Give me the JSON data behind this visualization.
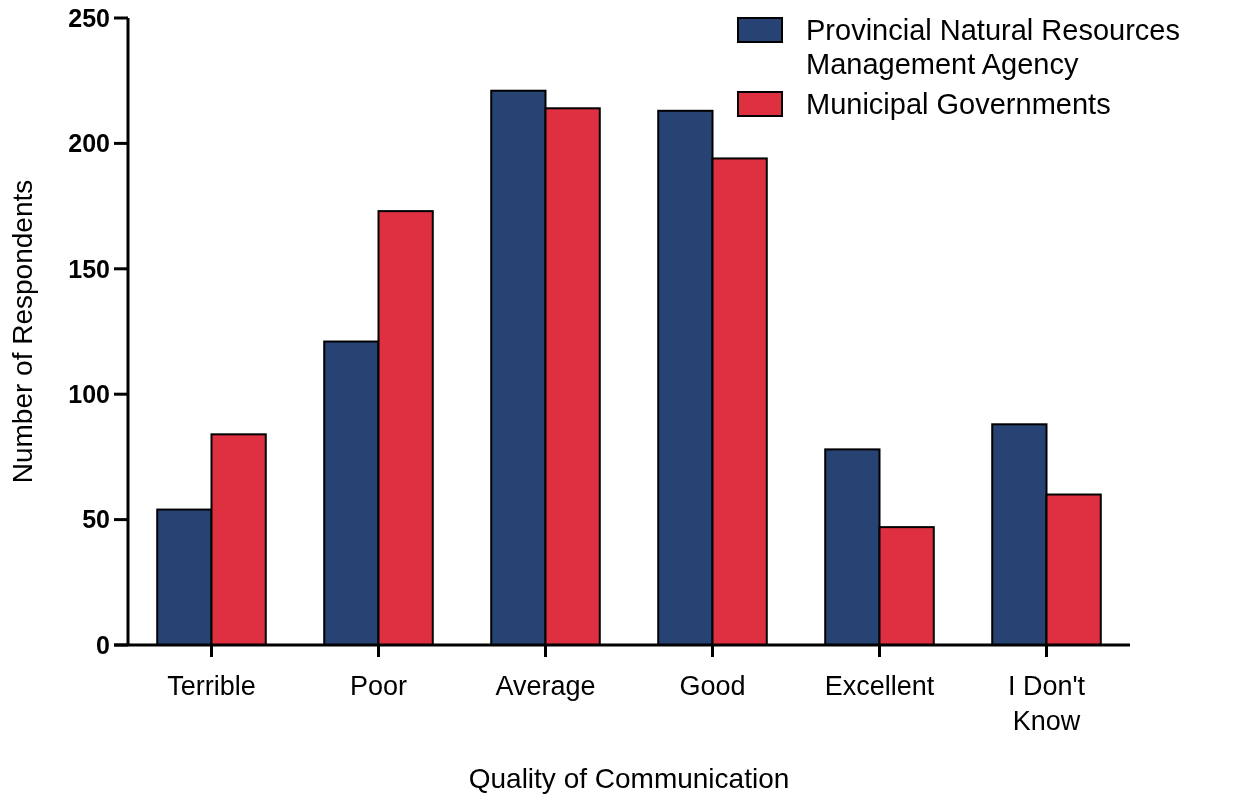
{
  "chart_data": {
    "type": "bar",
    "xlabel": "Quality of Communication",
    "ylabel": "Number of Respondents",
    "categories": [
      "Terrible",
      "Poor",
      "Average",
      "Good",
      "Excellent",
      "I Don't Know"
    ],
    "series": [
      {
        "name": "Provincial Natural Resources Management Agency",
        "color": "#264374",
        "values": [
          54,
          121,
          221,
          213,
          78,
          88
        ]
      },
      {
        "name": "Municipal Governments",
        "color": "#de3040",
        "values": [
          84,
          173,
          214,
          194,
          47,
          60
        ]
      }
    ],
    "ylim": [
      0,
      250
    ],
    "yticks": [
      0,
      50,
      100,
      150,
      200,
      250
    ],
    "legend": "top right"
  }
}
